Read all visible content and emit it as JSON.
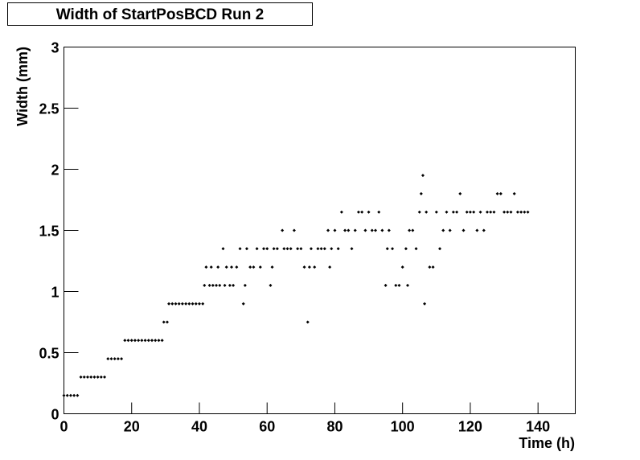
{
  "chart_data": {
    "type": "scatter",
    "title": "Width of StartPosBCD Run 2",
    "x_label": "Time (h)",
    "y_label": "Width (mm)",
    "color": "#000000",
    "xlim": [
      0,
      151
    ],
    "ylim": [
      0,
      3
    ],
    "xticks": [
      0,
      20,
      40,
      60,
      80,
      100,
      120,
      140
    ],
    "yticks": [
      0,
      0.5,
      1,
      1.5,
      2,
      2.5,
      3
    ],
    "x": [
      0,
      1,
      2,
      3,
      4,
      5,
      6,
      7,
      8,
      9,
      10,
      11,
      12,
      13,
      14,
      15,
      16,
      17,
      18,
      19,
      20,
      21,
      22,
      23,
      24,
      25,
      26,
      27,
      28,
      29,
      29.5,
      30.5,
      31,
      32,
      33,
      34,
      35,
      36,
      37,
      38,
      39,
      40,
      41,
      41.5,
      42,
      43,
      43.5,
      44,
      45,
      45.5,
      46,
      47,
      47.5,
      48,
      49,
      49.5,
      50,
      51,
      52,
      53,
      53.5,
      54,
      55,
      56,
      57,
      58,
      59,
      60,
      61,
      61.5,
      62,
      63,
      64.5,
      65,
      66,
      67,
      68,
      69,
      70,
      71,
      72,
      72.5,
      73,
      74,
      75,
      76,
      77,
      78,
      78.5,
      79,
      80,
      81,
      82,
      83,
      84,
      85,
      86,
      87,
      88,
      89,
      90,
      91,
      92,
      93,
      94,
      95,
      95.5,
      96,
      97,
      98,
      99,
      100,
      101,
      101.5,
      102,
      103,
      104,
      105,
      105.5,
      106,
      106.5,
      107,
      108,
      109,
      110,
      111,
      112,
      113,
      114,
      115,
      116,
      117,
      118,
      119,
      120,
      121,
      122,
      123,
      124,
      125,
      126,
      127,
      128,
      129,
      130,
      131,
      132,
      133,
      134,
      135,
      136,
      137
    ],
    "values": [
      0.15,
      0.15,
      0.15,
      0.15,
      0.15,
      0.3,
      0.3,
      0.3,
      0.3,
      0.3,
      0.3,
      0.3,
      0.3,
      0.45,
      0.45,
      0.45,
      0.45,
      0.45,
      0.6,
      0.6,
      0.6,
      0.6,
      0.6,
      0.6,
      0.6,
      0.6,
      0.6,
      0.6,
      0.6,
      0.6,
      0.75,
      0.75,
      0.9,
      0.9,
      0.9,
      0.9,
      0.9,
      0.9,
      0.9,
      0.9,
      0.9,
      0.9,
      0.9,
      1.05,
      1.2,
      1.05,
      1.2,
      1.05,
      1.05,
      1.2,
      1.05,
      1.35,
      1.05,
      1.2,
      1.05,
      1.2,
      1.05,
      1.2,
      1.35,
      0.9,
      1.05,
      1.35,
      1.2,
      1.2,
      1.35,
      1.2,
      1.35,
      1.35,
      1.05,
      1.2,
      1.35,
      1.35,
      1.5,
      1.35,
      1.35,
      1.35,
      1.5,
      1.35,
      1.35,
      1.2,
      0.75,
      1.2,
      1.35,
      1.2,
      1.35,
      1.35,
      1.35,
      1.5,
      1.2,
      1.35,
      1.5,
      1.35,
      1.65,
      1.5,
      1.5,
      1.35,
      1.5,
      1.65,
      1.65,
      1.5,
      1.65,
      1.5,
      1.5,
      1.65,
      1.5,
      1.05,
      1.35,
      1.5,
      1.35,
      1.05,
      1.05,
      1.2,
      1.35,
      1.05,
      1.5,
      1.5,
      1.35,
      1.65,
      1.8,
      1.95,
      0.9,
      1.65,
      1.2,
      1.2,
      1.65,
      1.35,
      1.5,
      1.65,
      1.5,
      1.65,
      1.65,
      1.8,
      1.5,
      1.65,
      1.65,
      1.65,
      1.5,
      1.65,
      1.5,
      1.65,
      1.65,
      1.65,
      1.8,
      1.8,
      1.65,
      1.65,
      1.65,
      1.8,
      1.65,
      1.65,
      1.65,
      1.65
    ]
  }
}
